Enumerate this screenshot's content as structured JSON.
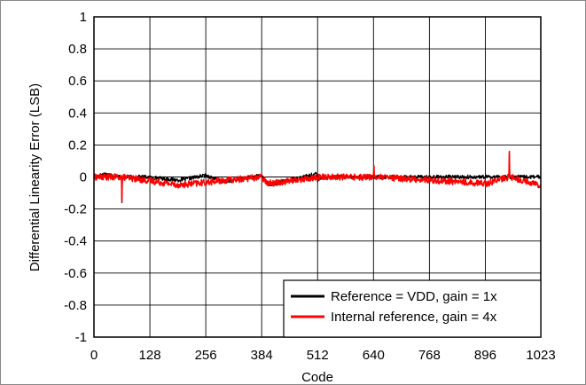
{
  "chart_data": {
    "type": "line",
    "title": "",
    "xlabel": "Code",
    "ylabel": "Differential Linearity Error (LSB)",
    "xlim": [
      0,
      1023
    ],
    "ylim": [
      -1,
      1
    ],
    "xticks": [
      0,
      128,
      256,
      384,
      512,
      640,
      768,
      896,
      1023
    ],
    "yticks": [
      -1,
      -0.8,
      -0.6,
      -0.4,
      -0.2,
      0,
      0.2,
      0.4,
      0.6,
      0.8,
      1
    ],
    "xtick_labels": [
      "0",
      "128",
      "256",
      "384",
      "512",
      "640",
      "768",
      "896",
      "1023"
    ],
    "ytick_labels": [
      "-1",
      "-0.8",
      "-0.6",
      "-0.4",
      "-0.2",
      "0",
      "0.2",
      "0.4",
      "0.6",
      "0.8",
      "1"
    ],
    "grid": true,
    "legend_position": "bottom-right",
    "series": [
      {
        "name": "Reference = VDD, gain = 1x",
        "color": "#000000",
        "noise": 0.012,
        "x": [
          0,
          25,
          63,
          64,
          65,
          120,
          196,
          256,
          297,
          384,
          400,
          510,
          512,
          520,
          650,
          768,
          950,
          951,
          952,
          1023
        ],
        "y": [
          0,
          0.02,
          0,
          -0.16,
          0,
          0,
          -0.02,
          0.01,
          -0.03,
          0.01,
          -0.05,
          0.02,
          -0.03,
          0,
          0,
          0,
          0,
          0.15,
          0,
          0
        ]
      },
      {
        "name": "Internal reference, gain = 4x",
        "color": "#ff0000",
        "noise": 0.02,
        "x": [
          0,
          63,
          64,
          65,
          196,
          384,
          400,
          520,
          640,
          641,
          642,
          900,
          950,
          951,
          952,
          1023
        ],
        "y": [
          0,
          0,
          -0.15,
          0,
          -0.05,
          0,
          -0.04,
          0,
          0,
          0.07,
          0,
          -0.04,
          0,
          0.16,
          0,
          -0.05
        ]
      }
    ]
  }
}
